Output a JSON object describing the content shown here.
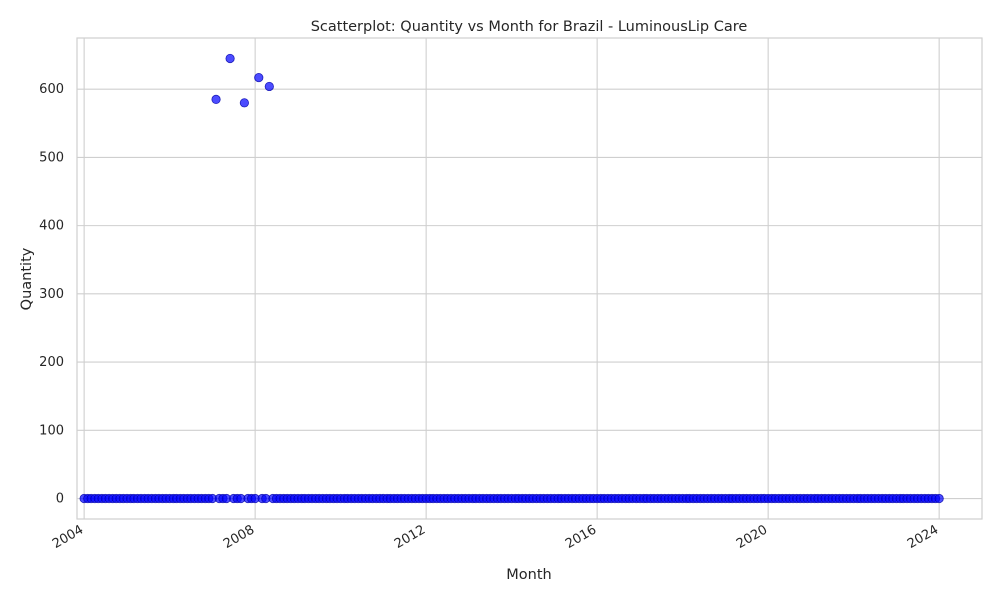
{
  "chart_data": {
    "type": "scatter",
    "title": "Scatterplot: Quantity vs Month for Brazil - LuminousLip Care",
    "xlabel": "Month",
    "ylabel": "Quantity",
    "x_unit": "date",
    "xlim": [
      "2003-11-01",
      "2025-01-01"
    ],
    "ylim": [
      -30,
      675
    ],
    "x_ticks": [
      "2004",
      "2008",
      "2012",
      "2016",
      "2020",
      "2024"
    ],
    "y_ticks": [
      "0",
      "100",
      "200",
      "300",
      "400",
      "500",
      "600"
    ],
    "grid": true,
    "legend": "none",
    "color": "#0000ff",
    "x_range_monthly": [
      "2004-01-01",
      "2024-01-01"
    ],
    "baseline_value": 0,
    "baseline_gaps": [
      "2007-02-01",
      "2007-06-01",
      "2007-10-01",
      "2008-02-01",
      "2008-05-01"
    ],
    "series": [
      {
        "values": [
          {
            "x": "2007-02-01",
            "y": 585
          },
          {
            "x": "2007-06-01",
            "y": 645
          },
          {
            "x": "2007-10-01",
            "y": 580
          },
          {
            "x": "2008-02-01",
            "y": 617
          },
          {
            "x": "2008-05-01",
            "y": 604
          }
        ]
      }
    ]
  }
}
